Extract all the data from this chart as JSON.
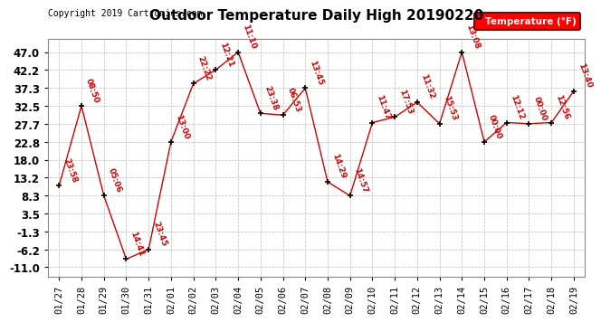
{
  "title": "Outdoor Temperature Daily High 20190220",
  "copyright": "Copyright 2019 Cartronics.com",
  "legend_label": "Temperature (°F)",
  "dates": [
    "01/27",
    "01/28",
    "01/29",
    "01/30",
    "01/31",
    "02/01",
    "02/02",
    "02/03",
    "02/04",
    "02/05",
    "02/06",
    "02/07",
    "02/08",
    "02/09",
    "02/10",
    "02/11",
    "02/12",
    "02/13",
    "02/14",
    "02/15",
    "02/16",
    "02/17",
    "02/18",
    "02/19"
  ],
  "values": [
    11.0,
    32.5,
    8.3,
    -8.8,
    -6.2,
    22.8,
    38.5,
    42.2,
    47.0,
    30.5,
    30.0,
    37.3,
    12.0,
    8.3,
    28.0,
    29.5,
    33.5,
    27.7,
    47.0,
    22.8,
    28.0,
    27.7,
    28.0,
    36.5
  ],
  "labels": [
    "23:58",
    "08:50",
    "05:06",
    "14:41",
    "23:45",
    "13:00",
    "22:22",
    "12:21",
    "11:10",
    "23:38",
    "06:53",
    "13:45",
    "14:29",
    "14:57",
    "11:47",
    "17:53",
    "11:32",
    "15:53",
    "13:08",
    "00:00",
    "12:12",
    "00:00",
    "12:56",
    "13:40"
  ],
  "yticks": [
    47.0,
    42.2,
    37.3,
    32.5,
    27.7,
    22.8,
    18.0,
    13.2,
    8.3,
    3.5,
    -1.3,
    -6.2,
    -11.0
  ],
  "ylim": [
    -13.5,
    50.5
  ],
  "line_color": "#cc0000",
  "marker_color": "#000000",
  "bg_color": "#ffffff",
  "grid_color": "#bbbbbb",
  "title_fontsize": 11,
  "label_fontsize": 6.5,
  "tick_fontsize": 7.5,
  "ytick_fontsize": 8.5
}
